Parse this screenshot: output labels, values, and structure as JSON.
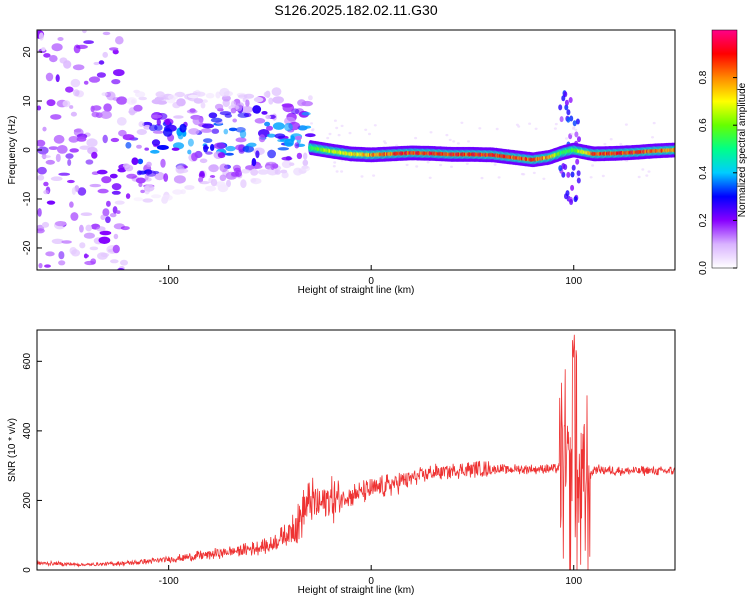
{
  "page": {
    "title": "S126.2025.182.02.11.G30"
  },
  "chart_data": [
    {
      "type": "heatmap",
      "name": "spectrogram",
      "xlabel": "Height of straight line (km)",
      "ylabel": "Frequency (Hz)",
      "xlim": [
        -165,
        150
      ],
      "ylim": [
        -24.5,
        24.5
      ],
      "xticks": [
        -100,
        0,
        100
      ],
      "yticks": [
        -20,
        -10,
        0,
        10,
        20
      ],
      "colorbar": {
        "label": "Normalized spectral amplitude",
        "range": [
          0,
          1
        ],
        "ticks": [
          0.0,
          0.2,
          0.4,
          0.6,
          0.8
        ],
        "colormap": [
          "#ffffff",
          "#d9b3ff",
          "#8800ff",
          "#0000ff",
          "#00ccff",
          "#00ff88",
          "#66ff00",
          "#ffff00",
          "#ff8800",
          "#ff0000",
          "#ff0088"
        ]
      },
      "ridge": [
        {
          "x": -30,
          "f": 0.5,
          "a": 0.55
        },
        {
          "x": -20,
          "f": -0.2,
          "a": 0.7
        },
        {
          "x": -10,
          "f": -0.8,
          "a": 0.75
        },
        {
          "x": 0,
          "f": -1.0,
          "a": 0.85
        },
        {
          "x": 10,
          "f": -0.8,
          "a": 0.9
        },
        {
          "x": 20,
          "f": -0.6,
          "a": 0.95
        },
        {
          "x": 30,
          "f": -0.7,
          "a": 0.95
        },
        {
          "x": 40,
          "f": -0.9,
          "a": 0.95
        },
        {
          "x": 50,
          "f": -0.9,
          "a": 0.95
        },
        {
          "x": 60,
          "f": -1.0,
          "a": 0.95
        },
        {
          "x": 70,
          "f": -1.5,
          "a": 0.9
        },
        {
          "x": 80,
          "f": -2.0,
          "a": 0.9
        },
        {
          "x": 88,
          "f": -1.5,
          "a": 0.85
        },
        {
          "x": 95,
          "f": -0.5,
          "a": 0.55
        },
        {
          "x": 100,
          "f": 0.0,
          "a": 0.6
        },
        {
          "x": 110,
          "f": -0.8,
          "a": 0.9
        },
        {
          "x": 120,
          "f": -0.7,
          "a": 0.95
        },
        {
          "x": 130,
          "f": -0.5,
          "a": 0.95
        },
        {
          "x": 140,
          "f": -0.2,
          "a": 0.9
        },
        {
          "x": 150,
          "f": 0.0,
          "a": 0.85
        }
      ]
    },
    {
      "type": "line",
      "name": "snr",
      "xlabel": "Height of straight line (km)",
      "ylabel": "SNR (10 * v/v)",
      "xlim": [
        -165,
        150
      ],
      "ylim": [
        0,
        690
      ],
      "xticks": [
        -100,
        0,
        100
      ],
      "yticks": [
        0,
        200,
        400,
        600
      ],
      "color": "#ee3333",
      "envelope": {
        "x": [
          -165,
          -140,
          -120,
          -100,
          -80,
          -60,
          -50,
          -40,
          -35,
          -30,
          -25,
          -20,
          -10,
          0,
          10,
          20,
          30,
          40,
          50,
          60,
          70,
          80,
          90,
          95,
          100,
          105,
          110,
          120,
          130,
          140,
          150
        ],
        "y": [
          20,
          15,
          20,
          30,
          45,
          60,
          70,
          110,
          150,
          200,
          190,
          200,
          215,
          230,
          245,
          265,
          280,
          285,
          290,
          290,
          290,
          290,
          290,
          295,
          200,
          240,
          290,
          285,
          285,
          285,
          285
        ]
      }
    }
  ]
}
